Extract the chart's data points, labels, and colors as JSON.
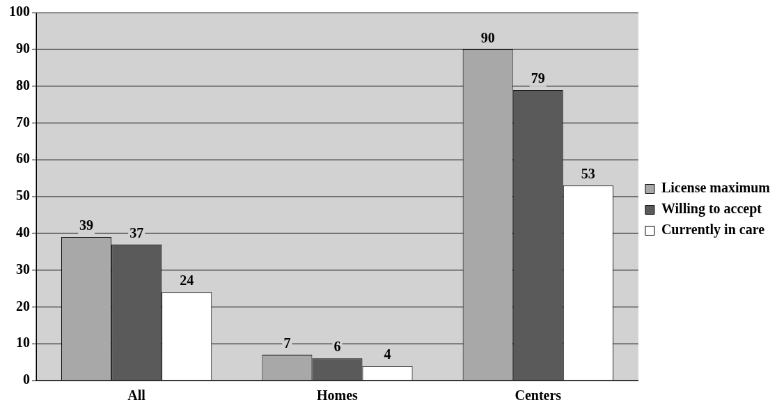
{
  "chart_data": {
    "type": "bar",
    "categories": [
      "All",
      "Homes",
      "Centers"
    ],
    "series": [
      {
        "name": "License maximum",
        "color": "#a8a8a8",
        "values": [
          39,
          7,
          90
        ]
      },
      {
        "name": "Willing to accept",
        "color": "#5a5a5a",
        "values": [
          37,
          6,
          79
        ]
      },
      {
        "name": "Currently in care",
        "color": "#ffffff",
        "values": [
          24,
          4,
          53
        ]
      }
    ],
    "ylim": [
      0,
      100
    ],
    "yticks": [
      0,
      10,
      20,
      30,
      40,
      50,
      60,
      70,
      80,
      90,
      100
    ],
    "grid": "y",
    "legend": "right",
    "data_labels": true
  }
}
